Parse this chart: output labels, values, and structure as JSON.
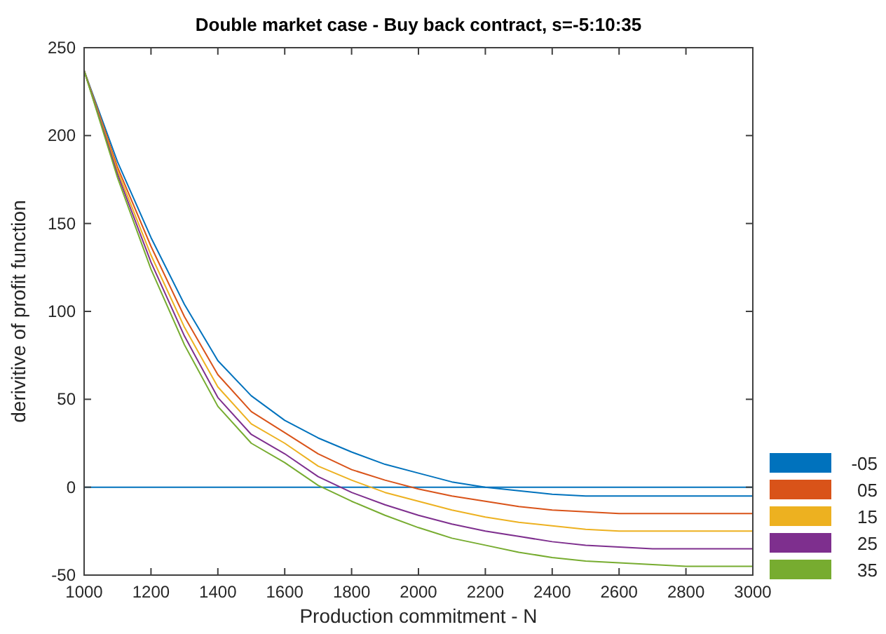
{
  "chart_data": {
    "type": "line",
    "title": "Double market case - Buy back contract, s=-5:10:35",
    "xlabel": "Production commitment - N",
    "ylabel": "derivitive of profit function",
    "x": [
      1000,
      1100,
      1200,
      1300,
      1400,
      1500,
      1600,
      1700,
      1800,
      1900,
      2000,
      2100,
      2200,
      2300,
      2400,
      2500,
      2600,
      2700,
      2800,
      2900,
      3000
    ],
    "series": [
      {
        "name": "-05",
        "color": "#0072bd",
        "values": [
          237,
          185,
          142,
          104,
          72,
          52,
          38,
          28,
          20,
          13,
          8,
          3,
          0,
          -2,
          -4,
          -5,
          -5,
          -5,
          -5,
          -5,
          -5
        ]
      },
      {
        "name": "05",
        "color": "#d95319",
        "values": [
          237,
          182,
          137,
          97,
          64,
          43,
          31,
          19,
          10,
          4,
          -1,
          -5,
          -8,
          -11,
          -13,
          -14,
          -15,
          -15,
          -15,
          -15,
          -15
        ]
      },
      {
        "name": "15",
        "color": "#edb120",
        "values": [
          237,
          180,
          132,
          91,
          57,
          36,
          25,
          12,
          4,
          -3,
          -8,
          -13,
          -17,
          -20,
          -22,
          -24,
          -25,
          -25,
          -25,
          -25,
          -25
        ]
      },
      {
        "name": "25",
        "color": "#7e2f8e",
        "values": [
          237,
          178,
          128,
          86,
          51,
          30,
          19,
          6,
          -3,
          -10,
          -16,
          -21,
          -25,
          -28,
          -31,
          -33,
          -34,
          -35,
          -35,
          -35,
          -35
        ]
      },
      {
        "name": "35",
        "color": "#77ac30",
        "values": [
          237,
          176,
          124,
          81,
          46,
          25,
          14,
          1,
          -8,
          -16,
          -23,
          -29,
          -33,
          -37,
          -40,
          -42,
          -43,
          -44,
          -45,
          -45,
          -45
        ]
      }
    ],
    "xlim": [
      1000,
      3000
    ],
    "xticks": [
      1000,
      1200,
      1400,
      1600,
      1800,
      2000,
      2200,
      2400,
      2600,
      2800,
      3000
    ],
    "ylim": [
      -50,
      250
    ],
    "yticks": [
      -50,
      0,
      50,
      100,
      150,
      200,
      250
    ],
    "ref_lines": [
      {
        "axis": "y",
        "value": 0,
        "color": "#0072bd"
      }
    ],
    "grid": false,
    "legend": "bottom right",
    "marker": "none",
    "line_style": "solid"
  }
}
